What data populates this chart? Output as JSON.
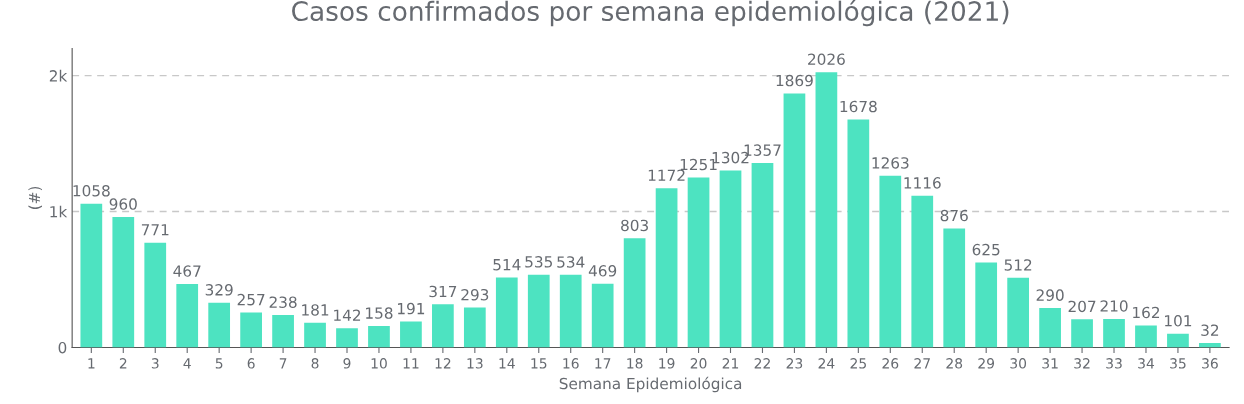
{
  "chart_data": {
    "type": "bar",
    "title": "Casos confirmados por semana epidemiológica (2021)",
    "xlabel": "Semana Epidemiológica",
    "ylabel": "(#)",
    "categories": [
      "1",
      "2",
      "3",
      "4",
      "5",
      "6",
      "7",
      "8",
      "9",
      "10",
      "11",
      "12",
      "13",
      "14",
      "15",
      "16",
      "17",
      "18",
      "19",
      "20",
      "21",
      "22",
      "23",
      "24",
      "25",
      "26",
      "27",
      "28",
      "29",
      "30",
      "31",
      "32",
      "33",
      "34",
      "35",
      "36"
    ],
    "values": [
      1058,
      960,
      771,
      467,
      329,
      257,
      238,
      181,
      142,
      158,
      191,
      317,
      293,
      514,
      535,
      534,
      469,
      803,
      1172,
      1251,
      1302,
      1357,
      1869,
      2026,
      1678,
      1263,
      1116,
      876,
      625,
      512,
      290,
      207,
      210,
      162,
      101,
      32
    ],
    "color": "#4de3c1",
    "ylim": [
      0,
      2200
    ],
    "yticks": [
      {
        "value": 0,
        "label": "0"
      },
      {
        "value": 1000,
        "label": "1k"
      },
      {
        "value": 2000,
        "label": "2k"
      }
    ],
    "grid": "y",
    "line_style": "dashed",
    "data_labels": true
  }
}
